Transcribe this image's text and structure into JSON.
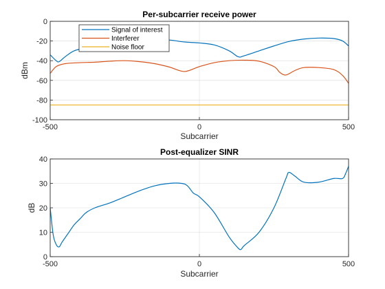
{
  "chart_data": [
    {
      "type": "line",
      "title": "Per-subcarrier receive power",
      "xlabel": "Subcarrier",
      "ylabel": "dBm",
      "xlim": [
        -500,
        500
      ],
      "ylim": [
        -100,
        0
      ],
      "xticks": [
        -500,
        0,
        500
      ],
      "yticks": [
        -100,
        -80,
        -60,
        -40,
        -20,
        0
      ],
      "grid": true,
      "legend": "upper-left",
      "series": [
        {
          "name": "Signal of interest",
          "color": "#0072BD",
          "x": [
            -500,
            -480,
            -470,
            -450,
            -420,
            -380,
            -340,
            -300,
            -250,
            -200,
            -150,
            -100,
            -50,
            0,
            50,
            100,
            130,
            150,
            200,
            250,
            300,
            350,
            400,
            450,
            480,
            500
          ],
          "y": [
            -34,
            -40,
            -41,
            -36,
            -30,
            -27,
            -25.5,
            -24,
            -21,
            -19,
            -18.5,
            -19,
            -21,
            -22,
            -24,
            -30,
            -36,
            -35,
            -30,
            -25,
            -20.5,
            -18,
            -17,
            -17.5,
            -20,
            -25
          ]
        },
        {
          "name": "Interferer",
          "color": "#D95319",
          "x": [
            -500,
            -480,
            -450,
            -400,
            -350,
            -300,
            -250,
            -200,
            -150,
            -100,
            -50,
            0,
            50,
            100,
            150,
            200,
            250,
            270,
            290,
            320,
            350,
            400,
            450,
            480,
            500
          ],
          "y": [
            -53,
            -46,
            -43,
            -42,
            -41.5,
            -40.5,
            -40,
            -41,
            -43,
            -46.5,
            -51,
            -46,
            -42,
            -40,
            -39.5,
            -40.5,
            -46,
            -52,
            -54.5,
            -50,
            -47,
            -47,
            -49,
            -55,
            -63
          ]
        },
        {
          "name": "Noise floor",
          "color": "#EDB120",
          "x": [
            -500,
            500
          ],
          "y": [
            -85,
            -85
          ]
        }
      ]
    },
    {
      "type": "line",
      "title": "Post-equalizer SINR",
      "xlabel": "Subcarrier",
      "ylabel": "dB",
      "xlim": [
        -500,
        500
      ],
      "ylim": [
        0,
        40
      ],
      "xticks": [
        -500,
        0,
        500
      ],
      "yticks": [
        0,
        10,
        20,
        30,
        40
      ],
      "grid": true,
      "series": [
        {
          "color": "#0072BD",
          "x": [
            -500,
            -490,
            -480,
            -470,
            -460,
            -440,
            -420,
            -400,
            -380,
            -350,
            -300,
            -250,
            -200,
            -150,
            -100,
            -60,
            -40,
            -20,
            0,
            50,
            100,
            130,
            140,
            150,
            200,
            250,
            290,
            300,
            320,
            350,
            400,
            450,
            480,
            490,
            500
          ],
          "y": [
            20,
            9,
            5,
            4,
            6,
            9.5,
            13,
            15.5,
            18,
            20,
            22,
            24.5,
            27,
            29,
            30,
            30,
            29,
            26,
            24.5,
            18,
            8,
            3.5,
            3,
            4.5,
            10,
            20,
            32,
            34.5,
            33,
            30.5,
            30.5,
            32,
            32,
            34,
            37
          ]
        }
      ]
    }
  ]
}
